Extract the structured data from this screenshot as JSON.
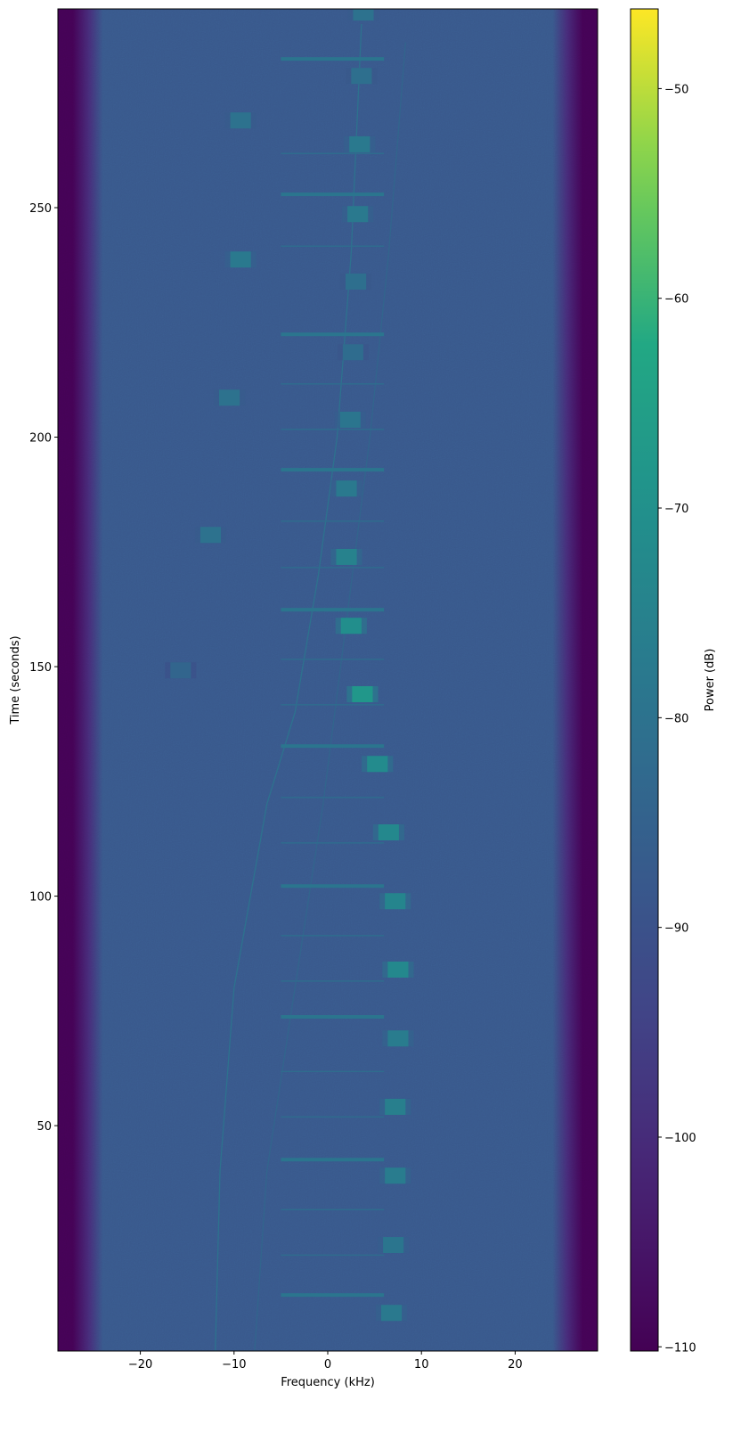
{
  "chart_data": {
    "type": "heatmap",
    "xlabel": "Frequency (kHz)",
    "ylabel": "Time (seconds)",
    "colorbar_label": "Power (dB)",
    "colormap": "viridis",
    "xlim": [
      -28.8,
      28.8
    ],
    "ylim": [
      0.9,
      293.3
    ],
    "clim": [
      -110.2,
      -46.2
    ],
    "xticks": [
      -20,
      -10,
      0,
      10,
      20
    ],
    "xtick_labels": [
      "−20",
      "−10",
      "0",
      "10",
      "20"
    ],
    "yticks": [
      50,
      100,
      150,
      200,
      250
    ],
    "ytick_labels": [
      "50",
      "100",
      "150",
      "200",
      "250"
    ],
    "cticks": [
      -50,
      -60,
      -70,
      -80,
      -90,
      -100,
      -110
    ],
    "ctick_labels": [
      "−50",
      "−60",
      "−70",
      "−80",
      "−90",
      "−100",
      "−110"
    ],
    "noise_floor_db": -88,
    "edge_db": -110,
    "passband_khz": [
      -24,
      24
    ],
    "bursts": [
      {
        "time": 292.5,
        "freq": 3.8,
        "power": -80
      },
      {
        "time": 278.7,
        "freq": 3.6,
        "power": -81
      },
      {
        "time": 269.0,
        "freq": -9.3,
        "power": -80
      },
      {
        "time": 263.8,
        "freq": 3.4,
        "power": -78
      },
      {
        "time": 248.6,
        "freq": 3.2,
        "power": -78
      },
      {
        "time": 238.7,
        "freq": -9.3,
        "power": -78
      },
      {
        "time": 233.9,
        "freq": 3.0,
        "power": -81
      },
      {
        "time": 218.5,
        "freq": 2.7,
        "power": -82
      },
      {
        "time": 208.6,
        "freq": -10.5,
        "power": -80
      },
      {
        "time": 203.8,
        "freq": 2.4,
        "power": -79
      },
      {
        "time": 188.8,
        "freq": 2.0,
        "power": -78
      },
      {
        "time": 178.7,
        "freq": -12.5,
        "power": -80
      },
      {
        "time": 173.9,
        "freq": 2.0,
        "power": -75
      },
      {
        "time": 158.9,
        "freq": 2.5,
        "power": -71
      },
      {
        "time": 149.2,
        "freq": -15.7,
        "power": -84
      },
      {
        "time": 144.0,
        "freq": 3.7,
        "power": -68
      },
      {
        "time": 128.8,
        "freq": 5.3,
        "power": -72
      },
      {
        "time": 113.9,
        "freq": 6.5,
        "power": -73
      },
      {
        "time": 98.9,
        "freq": 7.2,
        "power": -74
      },
      {
        "time": 84.0,
        "freq": 7.5,
        "power": -73
      },
      {
        "time": 69.0,
        "freq": 7.5,
        "power": -77
      },
      {
        "time": 54.1,
        "freq": 7.2,
        "power": -76
      },
      {
        "time": 39.1,
        "freq": 7.2,
        "power": -77
      },
      {
        "time": 24.0,
        "freq": 7.0,
        "power": -79
      },
      {
        "time": 9.2,
        "freq": 6.8,
        "power": -78
      }
    ],
    "tones": [
      {
        "time": 282.4,
        "power": -79,
        "strong": true
      },
      {
        "time": 261.8,
        "power": -82,
        "strong": false
      },
      {
        "time": 252.9,
        "power": -79,
        "strong": true
      },
      {
        "time": 241.6,
        "power": -82,
        "strong": false
      },
      {
        "time": 222.4,
        "power": -79,
        "strong": true
      },
      {
        "time": 211.6,
        "power": -82,
        "strong": false
      },
      {
        "time": 201.7,
        "power": -82,
        "strong": false
      },
      {
        "time": 192.9,
        "power": -79,
        "strong": true
      },
      {
        "time": 181.7,
        "power": -82,
        "strong": false
      },
      {
        "time": 171.6,
        "power": -82,
        "strong": false
      },
      {
        "time": 162.4,
        "power": -79,
        "strong": true
      },
      {
        "time": 151.6,
        "power": -82,
        "strong": false
      },
      {
        "time": 141.7,
        "power": -82,
        "strong": false
      },
      {
        "time": 132.7,
        "power": -79,
        "strong": true
      },
      {
        "time": 121.5,
        "power": -82,
        "strong": false
      },
      {
        "time": 111.6,
        "power": -82,
        "strong": false
      },
      {
        "time": 102.2,
        "power": -79,
        "strong": true
      },
      {
        "time": 91.4,
        "power": -82,
        "strong": false
      },
      {
        "time": 81.5,
        "power": -82,
        "strong": false
      },
      {
        "time": 73.7,
        "power": -79,
        "strong": true
      },
      {
        "time": 61.8,
        "power": -82,
        "strong": false
      },
      {
        "time": 51.9,
        "power": -82,
        "strong": false
      },
      {
        "time": 42.6,
        "power": -79,
        "strong": true
      },
      {
        "time": 31.7,
        "power": -82,
        "strong": false
      },
      {
        "time": 21.8,
        "power": -82,
        "strong": false
      },
      {
        "time": 13.1,
        "power": -79,
        "strong": true
      }
    ],
    "tone_band_khz": [
      -5,
      6
    ],
    "chirps": [
      {
        "power": -80,
        "points": [
          [
            -12.0,
            1
          ],
          [
            -11.5,
            40
          ],
          [
            -10.0,
            80
          ],
          [
            -6.5,
            120
          ],
          [
            -3.5,
            140
          ],
          [
            -1.0,
            170
          ],
          [
            1.0,
            200
          ],
          [
            2.5,
            240
          ],
          [
            3.6,
            290
          ]
        ]
      },
      {
        "power": -84,
        "points": [
          [
            -7.8,
            1
          ],
          [
            -6.5,
            40
          ],
          [
            -3.5,
            80
          ],
          [
            -0.5,
            120
          ],
          [
            2.0,
            160
          ],
          [
            4.5,
            200
          ],
          [
            6.5,
            240
          ],
          [
            8.3,
            286
          ]
        ]
      }
    ]
  }
}
